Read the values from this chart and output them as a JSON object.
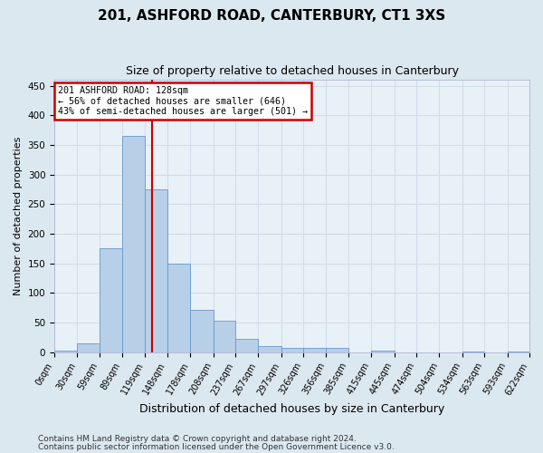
{
  "title1": "201, ASHFORD ROAD, CANTERBURY, CT1 3XS",
  "title2": "Size of property relative to detached houses in Canterbury",
  "xlabel": "Distribution of detached houses by size in Canterbury",
  "ylabel": "Number of detached properties",
  "footnote1": "Contains HM Land Registry data © Crown copyright and database right 2024.",
  "footnote2": "Contains public sector information licensed under the Open Government Licence v3.0.",
  "bin_edges": [
    0,
    30,
    59,
    89,
    119,
    148,
    178,
    208,
    237,
    267,
    297,
    326,
    356,
    385,
    415,
    445,
    474,
    504,
    534,
    563,
    593
  ],
  "bar_widths": [
    30,
    29,
    30,
    30,
    29,
    30,
    30,
    29,
    30,
    30,
    29,
    30,
    29,
    30,
    30,
    29,
    30,
    30,
    29,
    30,
    29
  ],
  "bar_heights": [
    3,
    15,
    175,
    365,
    275,
    150,
    72,
    53,
    22,
    10,
    7,
    7,
    7,
    0,
    2,
    0,
    0,
    0,
    1,
    0,
    1
  ],
  "bar_color": "#b8cfe8",
  "bar_edge_color": "#6699cc",
  "vline_x": 128,
  "vline_color": "#cc0000",
  "annotation_text": "201 ASHFORD ROAD: 128sqm\n← 56% of detached houses are smaller (646)\n43% of semi-detached houses are larger (501) →",
  "annotation_box_color": "#ffffff",
  "annotation_box_edge": "#cc0000",
  "ylim": [
    0,
    460
  ],
  "yticks": [
    0,
    50,
    100,
    150,
    200,
    250,
    300,
    350,
    400,
    450
  ],
  "xlim_max": 622,
  "grid_color": "#d0dce8",
  "bg_color": "#dce8f0",
  "plot_bg_color": "#e8f0f8",
  "title1_fontsize": 11,
  "title2_fontsize": 9,
  "ylabel_fontsize": 8,
  "xlabel_fontsize": 9,
  "tick_fontsize": 7,
  "footnote_fontsize": 6.5
}
